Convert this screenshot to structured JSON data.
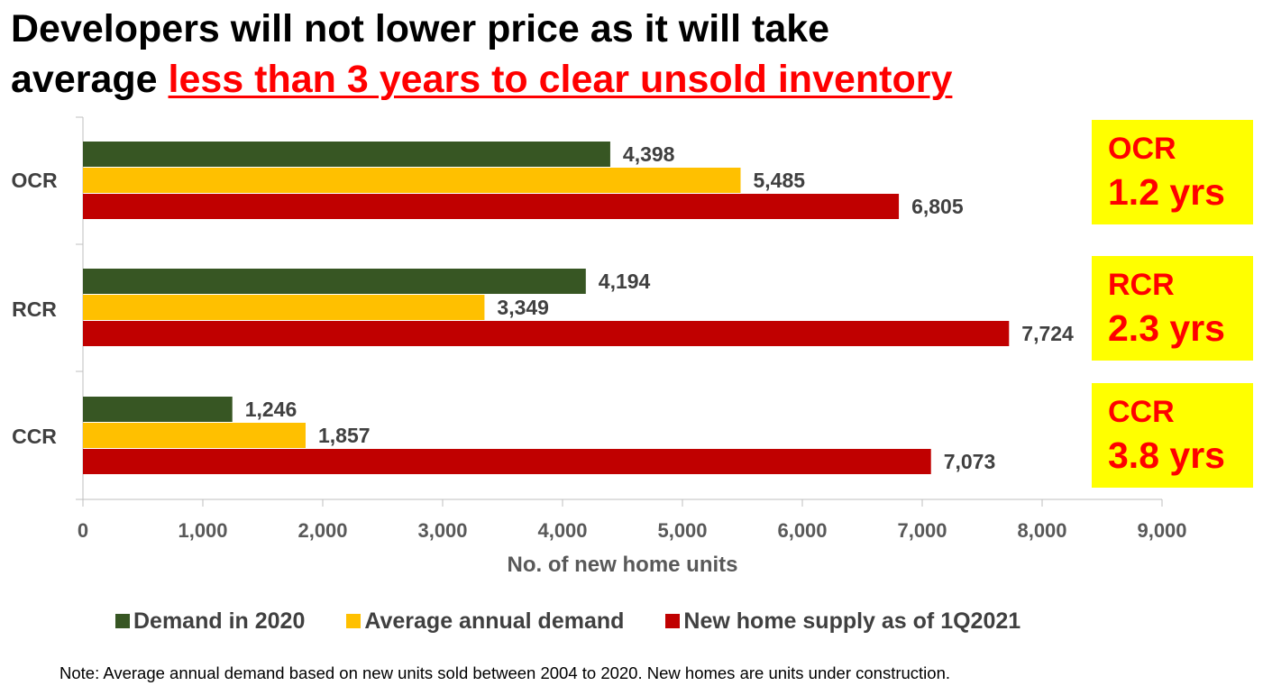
{
  "title": {
    "line1": "Developers will not lower price as it will take",
    "line2_prefix": "average ",
    "line2_highlight": "less than 3 years to clear unsold inventory"
  },
  "chart_data": {
    "type": "bar",
    "orientation": "horizontal",
    "categories": [
      "OCR",
      "RCR",
      "CCR"
    ],
    "series": [
      {
        "name": "Demand in 2020",
        "color": "#375623",
        "values": [
          4398,
          4194,
          1246
        ],
        "labels": [
          "4,398",
          "4,194",
          "1,246"
        ]
      },
      {
        "name": "Average annual demand",
        "color": "#ffc000",
        "values": [
          5485,
          3349,
          1857
        ],
        "labels": [
          "5,485",
          "3,349",
          "1,857"
        ]
      },
      {
        "name": "New home supply as of 1Q2021",
        "color": "#c00000",
        "values": [
          6805,
          7724,
          7073
        ],
        "labels": [
          "6,805",
          "7,724",
          "7,073"
        ]
      }
    ],
    "xlabel": "No. of new home units",
    "xlim": [
      0,
      9000
    ],
    "xticks": [
      0,
      1000,
      2000,
      3000,
      4000,
      5000,
      6000,
      7000,
      8000,
      9000
    ],
    "xtick_labels": [
      "0",
      "1,000",
      "2,000",
      "3,000",
      "4,000",
      "5,000",
      "6,000",
      "7,000",
      "8,000",
      "9,000"
    ],
    "grid": false,
    "legend_position": "bottom"
  },
  "clearance": [
    {
      "region": "OCR",
      "value": "1.2 yrs"
    },
    {
      "region": "RCR",
      "value": "2.3 yrs"
    },
    {
      "region": "CCR",
      "value": "3.8 yrs"
    }
  ],
  "note": "Note: Average annual demand based on new units sold between 2004 to 2020. New homes are units under construction."
}
